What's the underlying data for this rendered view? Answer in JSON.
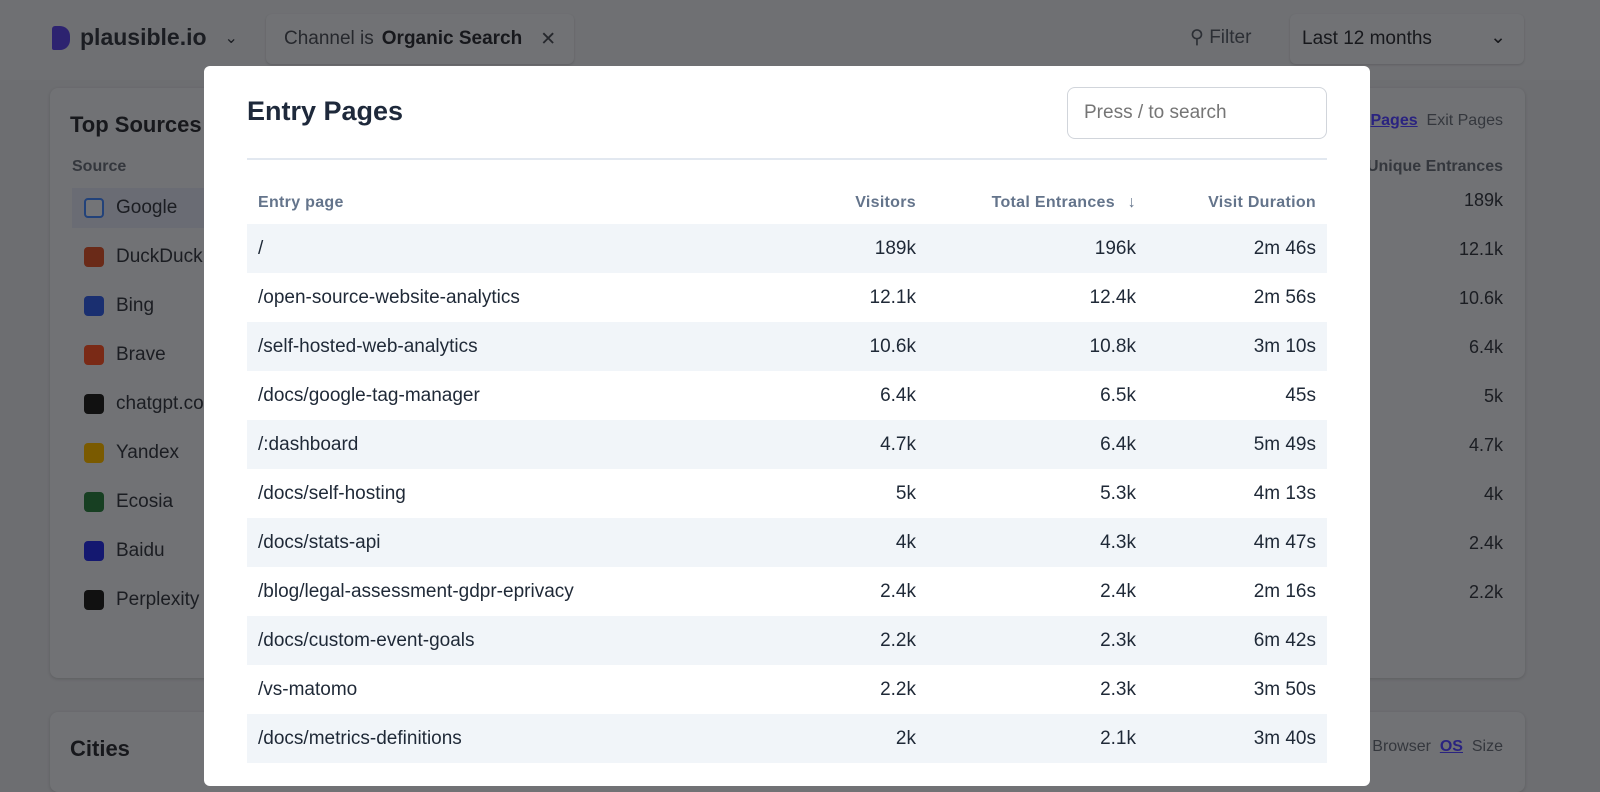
{
  "header": {
    "site": "plausible.io",
    "filter_chip": {
      "prefix": "Channel is",
      "value": "Organic Search"
    },
    "filter_label": "Filter",
    "period": "Last 12 months"
  },
  "background": {
    "top_sources": {
      "title": "Top Sources",
      "column": "Source",
      "items": [
        "Google",
        "DuckDuck",
        "Bing",
        "Brave",
        "chatgpt.co",
        "Yandex",
        "Ecosia",
        "Baidu",
        "Perplexity"
      ]
    },
    "pages": {
      "tabs": [
        "Pages",
        "Exit Pages"
      ],
      "column": "Unique Entrances",
      "values": [
        "189k",
        "12.1k",
        "10.6k",
        "6.4k",
        "5k",
        "4.7k",
        "4k",
        "2.4k",
        "2.2k"
      ]
    },
    "cities": {
      "title": "Cities",
      "tabs": [
        "Browser",
        "OS",
        "Size"
      ]
    }
  },
  "modal": {
    "title": "Entry Pages",
    "search_placeholder": "Press / to search",
    "columns": [
      "Entry page",
      "Visitors",
      "Total Entrances",
      "Visit Duration"
    ],
    "sort_icon": "arrow-down",
    "rows": [
      [
        "/",
        "189k",
        "196k",
        "2m 46s"
      ],
      [
        "/open-source-website-analytics",
        "12.1k",
        "12.4k",
        "2m 56s"
      ],
      [
        "/self-hosted-web-analytics",
        "10.6k",
        "10.8k",
        "3m 10s"
      ],
      [
        "/docs/google-tag-manager",
        "6.4k",
        "6.5k",
        "45s"
      ],
      [
        "/:dashboard",
        "4.7k",
        "6.4k",
        "5m 49s"
      ],
      [
        "/docs/self-hosting",
        "5k",
        "5.3k",
        "4m 13s"
      ],
      [
        "/docs/stats-api",
        "4k",
        "4.3k",
        "4m 47s"
      ],
      [
        "/blog/legal-assessment-gdpr-eprivacy",
        "2.4k",
        "2.4k",
        "2m 16s"
      ],
      [
        "/docs/custom-event-goals",
        "2.2k",
        "2.3k",
        "6m 42s"
      ],
      [
        "/vs-matomo",
        "2.2k",
        "2.3k",
        "3m 50s"
      ],
      [
        "/docs/metrics-definitions",
        "2k",
        "2.1k",
        "3m 40s"
      ]
    ]
  }
}
